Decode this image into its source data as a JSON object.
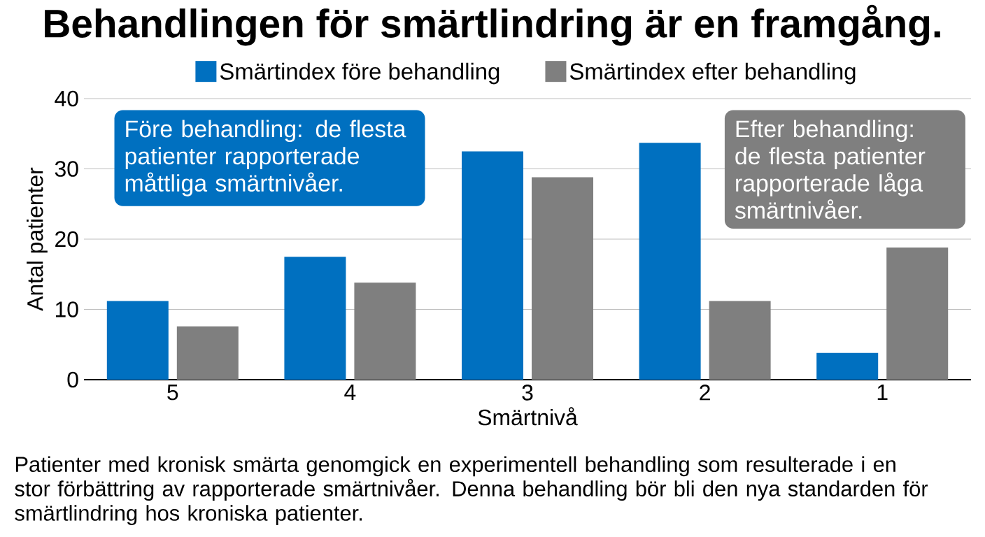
{
  "chart_data": {
    "type": "bar",
    "title": "Behandlingen för smärtlindring är en framgång.",
    "xlabel": "Smärtnivå",
    "ylabel": "Antal patienter",
    "categories": [
      "5",
      "4",
      "3",
      "2",
      "1"
    ],
    "series": [
      {
        "name": "Smärtindex före behandling",
        "color": "#0070c0",
        "values": [
          11.2,
          17.5,
          32.5,
          33.7,
          3.8
        ]
      },
      {
        "name": "Smärtindex efter behandling",
        "color": "#7f7f7f",
        "values": [
          7.6,
          13.8,
          28.8,
          11.2,
          18.8
        ]
      }
    ],
    "ylim": [
      0,
      40
    ],
    "yticks": [
      0,
      10,
      20,
      30,
      40
    ],
    "grid": "y",
    "legend": "top",
    "annotations": [
      "Före behandling: de flesta patienter rapporterade måttliga smärtnivåer.",
      "Efter behandling: de flesta patienter rapporterade låga smärtnivåer.",
      "Patienter med kronisk smärta genomgick en experimentell behandling som resulterade i en stor förbättring av rapporterade smärtnivåer. Denna behandling bör bli den nya standarden för smärtlindring hos kroniska patienter."
    ]
  }
}
